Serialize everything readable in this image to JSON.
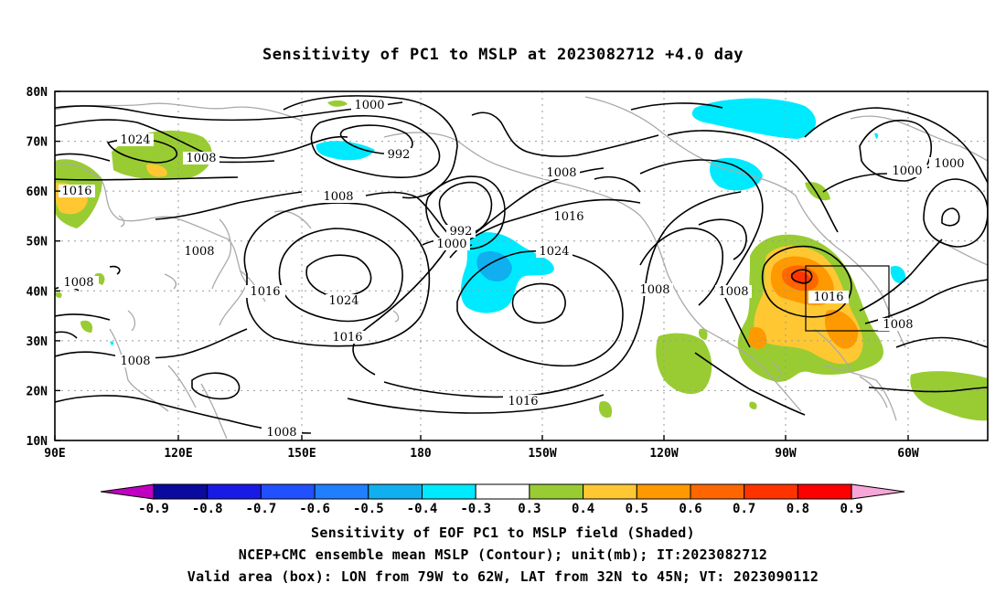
{
  "title": "Sensitivity of PC1 to MSLP at 2023082712 +4.0 day",
  "lat_labels": [
    "80N",
    "70N",
    "60N",
    "50N",
    "40N",
    "30N",
    "20N",
    "10N"
  ],
  "lon_labels": [
    "90E",
    "120E",
    "150E",
    "180",
    "150W",
    "120W",
    "90W",
    "60W"
  ],
  "contour_labels": [
    {
      "text": "1000"
    },
    {
      "text": "1024"
    },
    {
      "text": "992"
    },
    {
      "text": "1008"
    },
    {
      "text": "1016"
    },
    {
      "text": "1008"
    },
    {
      "text": "1008"
    },
    {
      "text": "1008"
    },
    {
      "text": "992"
    },
    {
      "text": "1000"
    },
    {
      "text": "1016"
    },
    {
      "text": "1024"
    },
    {
      "text": "1008"
    },
    {
      "text": "1016"
    },
    {
      "text": "1024"
    },
    {
      "text": "1008"
    },
    {
      "text": "1008"
    },
    {
      "text": "1016"
    },
    {
      "text": "1008"
    },
    {
      "text": "1016"
    },
    {
      "text": "1008"
    },
    {
      "text": "1000"
    },
    {
      "text": "1000"
    }
  ],
  "colorbar": {
    "labels": [
      "-0.9",
      "-0.8",
      "-0.7",
      "-0.6",
      "-0.5",
      "-0.4",
      "-0.3",
      "0.3",
      "0.4",
      "0.5",
      "0.6",
      "0.7",
      "0.8",
      "0.9"
    ],
    "colors": [
      "#0a0a9e",
      "#1a1ae6",
      "#2050ff",
      "#1f7fff",
      "#10b0f0",
      "#00eaff",
      "#ffffff",
      "#99cc33",
      "#ffc833",
      "#ff9900",
      "#ff6600",
      "#ff3300",
      "#ff0000"
    ],
    "low_arrow_color": "#c000c0",
    "high_arrow_color": "#f7a6d8"
  },
  "caption": {
    "line1": "Sensitivity of EOF PC1 to MSLP field (Shaded)",
    "line2": "NCEP+CMC ensemble mean MSLP (Contour); unit(mb); IT:2023082712",
    "line3": "Valid area (box): LON from 79W to 62W, LAT from 32N to 45N; VT: 2023090112"
  }
}
